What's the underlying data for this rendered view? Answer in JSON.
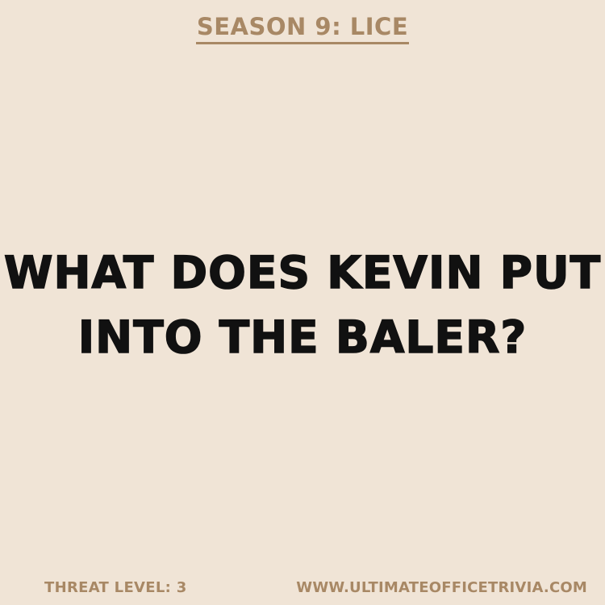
{
  "header": {
    "season_title": "SEASON 9: LICE"
  },
  "question": {
    "line1": "WHAT DOES KEVIN PUT",
    "line2": "INTO THE BALER?"
  },
  "footer": {
    "threat_level": "THREAT LEVEL: 3",
    "website": "WWW.ULTIMATEOFFICETRIVIA.COM"
  },
  "colors": {
    "background": "#f0e4d6",
    "accent": "#a88865",
    "text": "#111111"
  }
}
